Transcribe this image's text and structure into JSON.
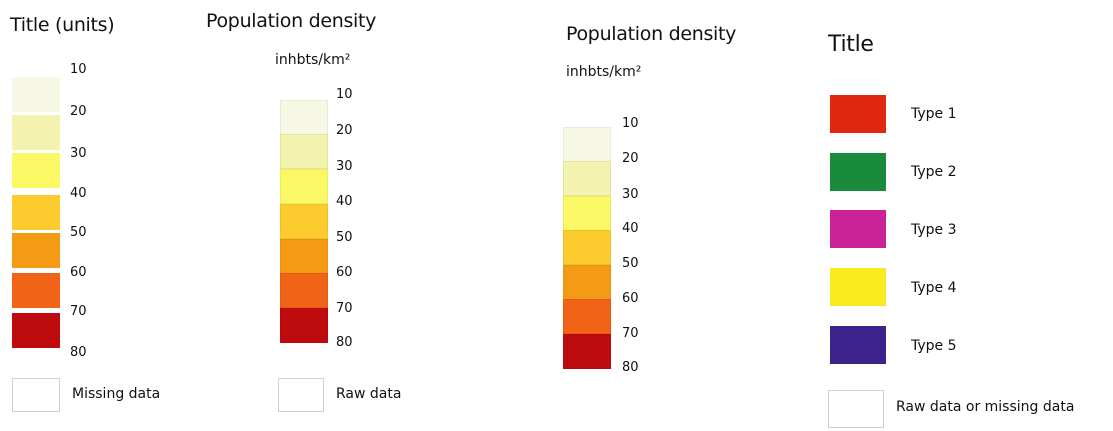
{
  "legends": {
    "p1": {
      "title": "Title (units)",
      "ticks": [
        "10",
        "20",
        "30",
        "40",
        "50",
        "60",
        "70",
        "80"
      ],
      "colors": [
        "#F7F7E6",
        "#F3F2AE",
        "#FAF865",
        "#FCCB2E",
        "#F59A14",
        "#F16317",
        "#BE0B0E"
      ],
      "missing_label": "Missing data"
    },
    "p2": {
      "title": "Population  density",
      "unit": "inhbts/km²",
      "ticks": [
        "10",
        "20",
        "30",
        "40",
        "50",
        "60",
        "70",
        "80"
      ],
      "colors": [
        "#F7F7E6",
        "#F3F2AE",
        "#FAF865",
        "#FCCB2E",
        "#F59A14",
        "#F16317",
        "#BE0B0E"
      ],
      "raw_label": "Raw data"
    },
    "p3": {
      "title": "Population density",
      "unit": "inhbts/km²",
      "ticks": [
        "10",
        "20",
        "30",
        "40",
        "50",
        "60",
        "70",
        "80"
      ],
      "colors": [
        "#F7F7E6",
        "#F3F2AE",
        "#FAF865",
        "#FCCB2E",
        "#F59A14",
        "#F16317",
        "#BE0B0E"
      ]
    },
    "p4": {
      "title": "Title",
      "types": [
        {
          "label": "Type 1",
          "color": "#E0280E"
        },
        {
          "label": "Type 2",
          "color": "#198A3B"
        },
        {
          "label": "Type 3",
          "color": "#C92397"
        },
        {
          "label": "Type 4",
          "color": "#FBEB1E"
        },
        {
          "label": "Type 5",
          "color": "#3C238B"
        }
      ],
      "raw_missing_label": "Raw data or missing data"
    }
  }
}
